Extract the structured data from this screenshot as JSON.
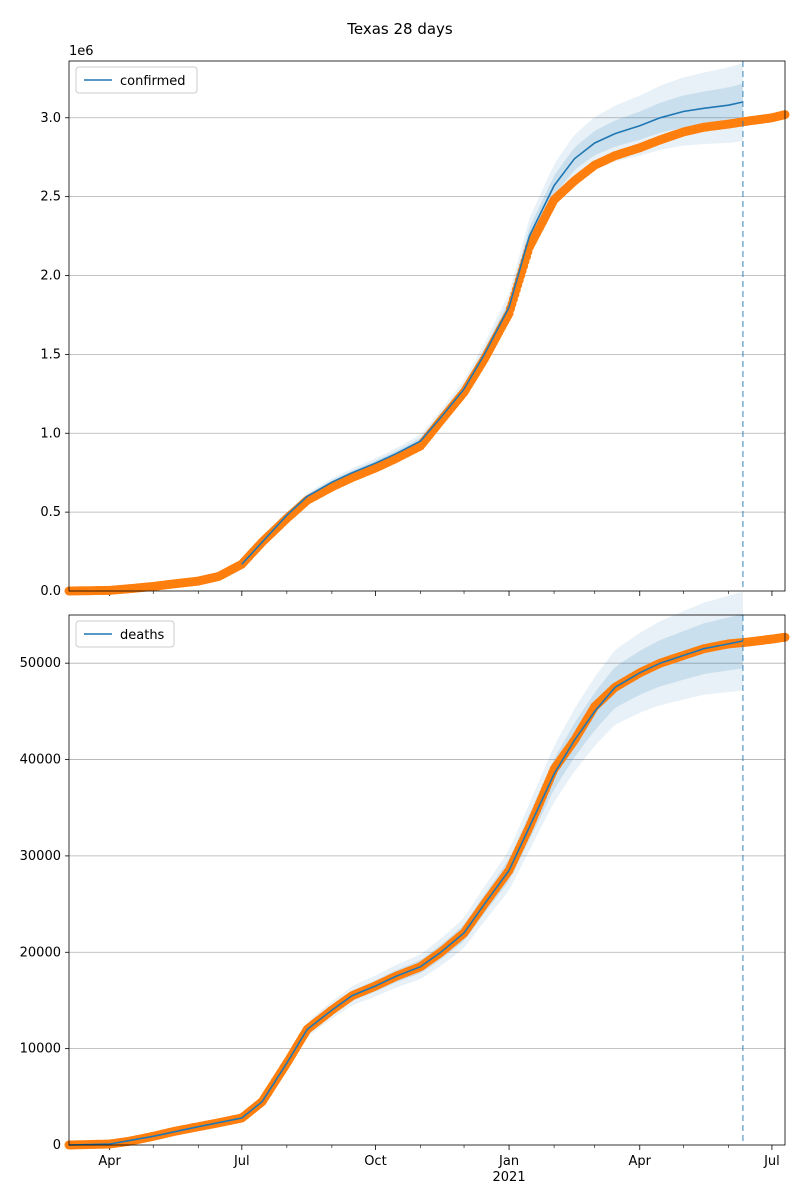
{
  "figure": {
    "title": "Texas 28 days"
  },
  "chart_data": [
    {
      "type": "line",
      "ylabel": "",
      "offset_label": "1e6",
      "ylim": [
        0,
        3360000
      ],
      "yticks": [
        0,
        500000,
        1000000,
        1500000,
        2000000,
        2500000,
        3000000
      ],
      "ytick_labels": [
        "0.0",
        "0.5",
        "1.0",
        "1.5",
        "2.0",
        "2.5",
        "3.0"
      ],
      "grid": "horizontal",
      "legend": {
        "placement": "top-left",
        "entries": [
          "confirmed"
        ]
      },
      "forecast_date": "2021-06-11",
      "series": [
        {
          "name": "confirmed",
          "kind": "model",
          "color": "#1f77b4",
          "points": [
            [
              "2020-07-01",
              170000
            ],
            [
              "2020-07-15",
              310000
            ],
            [
              "2020-08-01",
              480000
            ],
            [
              "2020-08-15",
              600000
            ],
            [
              "2020-09-01",
              690000
            ],
            [
              "2020-09-15",
              750000
            ],
            [
              "2020-10-01",
              810000
            ],
            [
              "2020-10-15",
              870000
            ],
            [
              "2020-11-01",
              950000
            ],
            [
              "2020-11-15",
              1100000
            ],
            [
              "2020-12-01",
              1280000
            ],
            [
              "2020-12-15",
              1500000
            ],
            [
              "2021-01-01",
              1800000
            ],
            [
              "2021-01-15",
              2250000
            ],
            [
              "2021-02-01",
              2570000
            ],
            [
              "2021-02-15",
              2740000
            ],
            [
              "2021-03-01",
              2840000
            ],
            [
              "2021-03-15",
              2900000
            ],
            [
              "2021-04-01",
              2950000
            ],
            [
              "2021-04-15",
              3000000
            ],
            [
              "2021-05-01",
              3040000
            ],
            [
              "2021-05-15",
              3060000
            ],
            [
              "2021-06-01",
              3080000
            ],
            [
              "2021-06-11",
              3100000
            ]
          ],
          "band_inner": [
            0.035,
            0.015
          ],
          "band_outer": [
            0.075,
            0.03
          ]
        },
        {
          "name": "observed confirmed",
          "kind": "observed",
          "color": "#ff7f0e",
          "points": [
            [
              "2020-03-04",
              0
            ],
            [
              "2020-04-01",
              4000
            ],
            [
              "2020-04-15",
              15000
            ],
            [
              "2020-05-01",
              29000
            ],
            [
              "2020-05-15",
              45000
            ],
            [
              "2020-06-01",
              63000
            ],
            [
              "2020-06-15",
              92000
            ],
            [
              "2020-07-01",
              170000
            ],
            [
              "2020-07-15",
              310000
            ],
            [
              "2020-08-01",
              460000
            ],
            [
              "2020-08-15",
              575000
            ],
            [
              "2020-09-01",
              660000
            ],
            [
              "2020-09-15",
              720000
            ],
            [
              "2020-10-01",
              780000
            ],
            [
              "2020-10-15",
              840000
            ],
            [
              "2020-11-01",
              920000
            ],
            [
              "2020-11-15",
              1080000
            ],
            [
              "2020-12-01",
              1260000
            ],
            [
              "2020-12-15",
              1470000
            ],
            [
              "2021-01-01",
              1760000
            ],
            [
              "2021-01-15",
              2180000
            ],
            [
              "2021-02-01",
              2480000
            ],
            [
              "2021-02-15",
              2600000
            ],
            [
              "2021-03-01",
              2700000
            ],
            [
              "2021-03-15",
              2760000
            ],
            [
              "2021-04-01",
              2810000
            ],
            [
              "2021-04-15",
              2860000
            ],
            [
              "2021-05-01",
              2910000
            ],
            [
              "2021-05-15",
              2940000
            ],
            [
              "2021-06-01",
              2960000
            ],
            [
              "2021-06-15",
              2980000
            ],
            [
              "2021-07-01",
              3000000
            ],
            [
              "2021-07-10",
              3020000
            ]
          ]
        }
      ]
    },
    {
      "type": "line",
      "ylabel": "",
      "offset_label": "",
      "ylim": [
        0,
        55000
      ],
      "yticks": [
        0,
        10000,
        20000,
        30000,
        40000,
        50000
      ],
      "ytick_labels": [
        "0",
        "10000",
        "20000",
        "30000",
        "40000",
        "50000"
      ],
      "grid": "horizontal",
      "legend": {
        "placement": "top-left",
        "entries": [
          "deaths"
        ]
      },
      "forecast_date": "2021-06-11",
      "x_axis": {
        "xlim": [
          "2020-03-04",
          "2021-07-10"
        ],
        "ticks": [
          "2020-04-01",
          "2020-07-01",
          "2020-10-01",
          "2021-01-01",
          "2021-04-01",
          "2021-07-01"
        ],
        "tick_labels": [
          "Apr",
          "Jul",
          "Oct",
          "Jan",
          "Apr",
          "Jul"
        ],
        "year_label": "2021"
      },
      "series": [
        {
          "name": "deaths",
          "kind": "model",
          "color": "#1f77b4",
          "points": [
            [
              "2020-03-04",
              0
            ],
            [
              "2020-04-01",
              100
            ],
            [
              "2020-05-01",
              900
            ],
            [
              "2020-06-01",
              1900
            ],
            [
              "2020-07-01",
              2800
            ],
            [
              "2020-07-15",
              4500
            ],
            [
              "2020-08-01",
              8500
            ],
            [
              "2020-08-15",
              12000
            ],
            [
              "2020-09-01",
              14000
            ],
            [
              "2020-09-15",
              15500
            ],
            [
              "2020-10-01",
              16500
            ],
            [
              "2020-10-15",
              17500
            ],
            [
              "2020-11-01",
              18500
            ],
            [
              "2020-11-15",
              20000
            ],
            [
              "2020-12-01",
              22000
            ],
            [
              "2020-12-15",
              25000
            ],
            [
              "2021-01-01",
              28500
            ],
            [
              "2021-01-15",
              33000
            ],
            [
              "2021-02-01",
              38500
            ],
            [
              "2021-02-15",
              42000
            ],
            [
              "2021-03-01",
              45000
            ],
            [
              "2021-03-15",
              47500
            ],
            [
              "2021-04-01",
              49000
            ],
            [
              "2021-04-15",
              50000
            ],
            [
              "2021-05-01",
              50800
            ],
            [
              "2021-05-15",
              51500
            ],
            [
              "2021-06-01",
              52000
            ],
            [
              "2021-06-11",
              52300
            ]
          ],
          "band_inner": [
            0.05,
            0.025
          ],
          "band_outer": [
            0.09,
            0.05
          ]
        },
        {
          "name": "observed deaths",
          "kind": "observed",
          "color": "#ff7f0e",
          "points": [
            [
              "2020-03-04",
              0
            ],
            [
              "2020-04-01",
              100
            ],
            [
              "2020-04-15",
              400
            ],
            [
              "2020-05-01",
              900
            ],
            [
              "2020-05-15",
              1400
            ],
            [
              "2020-06-01",
              1900
            ],
            [
              "2020-06-15",
              2300
            ],
            [
              "2020-07-01",
              2800
            ],
            [
              "2020-07-15",
              4500
            ],
            [
              "2020-08-01",
              8500
            ],
            [
              "2020-08-15",
              12000
            ],
            [
              "2020-09-01",
              14000
            ],
            [
              "2020-09-15",
              15500
            ],
            [
              "2020-10-01",
              16500
            ],
            [
              "2020-10-15",
              17500
            ],
            [
              "2020-11-01",
              18500
            ],
            [
              "2020-11-15",
              20000
            ],
            [
              "2020-12-01",
              22000
            ],
            [
              "2020-12-15",
              25000
            ],
            [
              "2021-01-01",
              28500
            ],
            [
              "2021-01-15",
              33000
            ],
            [
              "2021-02-01",
              39000
            ],
            [
              "2021-02-15",
              42000
            ],
            [
              "2021-03-01",
              45500
            ],
            [
              "2021-03-15",
              47500
            ],
            [
              "2021-04-01",
              49000
            ],
            [
              "2021-04-15",
              50000
            ],
            [
              "2021-05-01",
              50800
            ],
            [
              "2021-05-15",
              51500
            ],
            [
              "2021-06-01",
              52000
            ],
            [
              "2021-06-15",
              52200
            ],
            [
              "2021-07-01",
              52500
            ],
            [
              "2021-07-10",
              52700
            ]
          ]
        }
      ]
    }
  ]
}
